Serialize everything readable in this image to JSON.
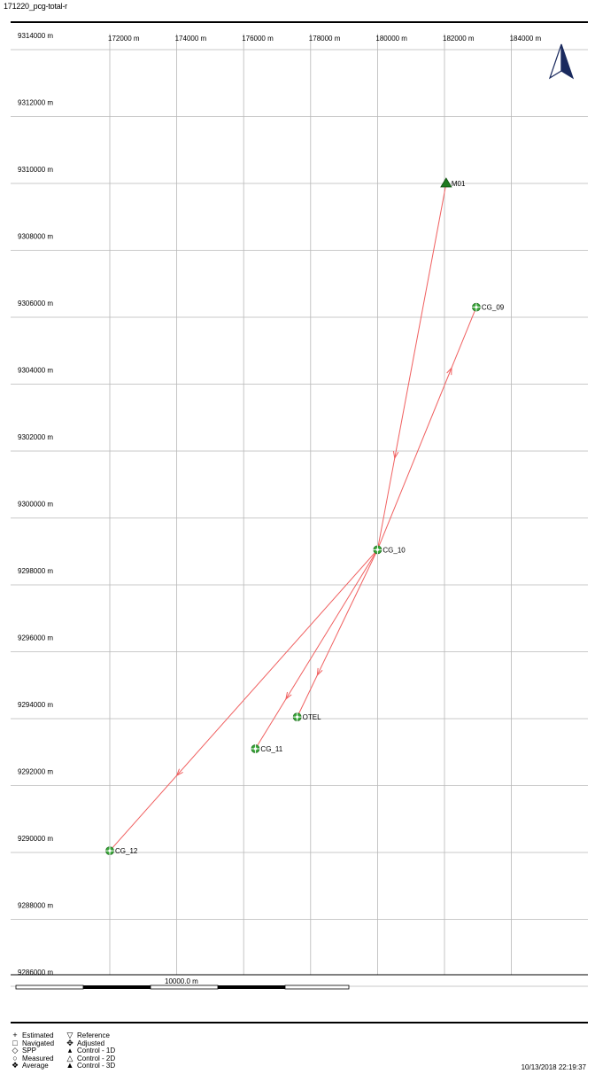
{
  "title": "171220_pcg-total-r",
  "timestamp": "10/13/2018 22:19:37",
  "colors": {
    "vector": "#f06060",
    "point_fill": "#3aa63a",
    "point_stroke": "#1e6e1e",
    "grid": "#b8b8b8",
    "frame": "#000000"
  },
  "chart_data": {
    "type": "scatter",
    "x_axis": {
      "ticks": [
        172000,
        174000,
        176000,
        178000,
        180000,
        182000,
        184000
      ],
      "tick_labels": [
        "172000 m",
        "174000 m",
        "176000 m",
        "178000 m",
        "180000 m",
        "182000 m",
        "184000 m"
      ]
    },
    "y_axis": {
      "ticks": [
        9314000,
        9312000,
        9310000,
        9308000,
        9306000,
        9304000,
        9302000,
        9300000,
        9298000,
        9296000,
        9294000,
        9292000,
        9290000,
        9288000,
        9286000
      ],
      "tick_labels": [
        "9314000 m",
        "9312000 m",
        "9310000 m",
        "9308000 m",
        "9306000 m",
        "9304000 m",
        "9302000 m",
        "9300000 m",
        "9298000 m",
        "9296000 m",
        "9294000 m",
        "9292000 m",
        "9290000 m",
        "9288000 m",
        "9286000 m"
      ]
    },
    "points": [
      {
        "name": "M01",
        "x": 182050,
        "y": 9310000,
        "kind": "control-3d"
      },
      {
        "name": "CG_09",
        "x": 182950,
        "y": 9306300,
        "kind": "adjusted"
      },
      {
        "name": "CG_10",
        "x": 180000,
        "y": 9299050,
        "kind": "adjusted"
      },
      {
        "name": "OTEL",
        "x": 177600,
        "y": 9294050,
        "kind": "adjusted"
      },
      {
        "name": "CG_11",
        "x": 176350,
        "y": 9293100,
        "kind": "adjusted"
      },
      {
        "name": "CG_12",
        "x": 172000,
        "y": 9290050,
        "kind": "adjusted"
      }
    ],
    "vectors": [
      {
        "from": "M01",
        "to": "CG_10"
      },
      {
        "from": "CG_10",
        "to": "CG_09"
      },
      {
        "from": "CG_10",
        "to": "OTEL"
      },
      {
        "from": "CG_10",
        "to": "CG_11"
      },
      {
        "from": "CG_10",
        "to": "CG_12"
      }
    ],
    "scale_bar_label": "10000.0 m",
    "grid": true
  },
  "legend": {
    "col1": [
      {
        "icon": "plus-icon",
        "glyph": "+",
        "label": "Estimated"
      },
      {
        "icon": "square-icon",
        "glyph": "□",
        "label": "Navigated"
      },
      {
        "icon": "diamond-icon",
        "glyph": "◇",
        "label": "SPP"
      },
      {
        "icon": "circle-icon",
        "glyph": "○",
        "label": "Measured"
      },
      {
        "icon": "average-icon",
        "glyph": "❖",
        "label": "Average"
      }
    ],
    "col2": [
      {
        "icon": "triangle-down-icon",
        "glyph": "▽",
        "label": "Reference"
      },
      {
        "icon": "adjusted-icon",
        "glyph": "✥",
        "label": "Adjusted"
      },
      {
        "icon": "triangle-small-icon",
        "glyph": "▴",
        "label": "Control - 1D"
      },
      {
        "icon": "triangle-outline-icon",
        "glyph": "△",
        "label": "Control - 2D"
      },
      {
        "icon": "triangle-filled-icon",
        "glyph": "▲",
        "label": "Control - 3D"
      }
    ]
  }
}
